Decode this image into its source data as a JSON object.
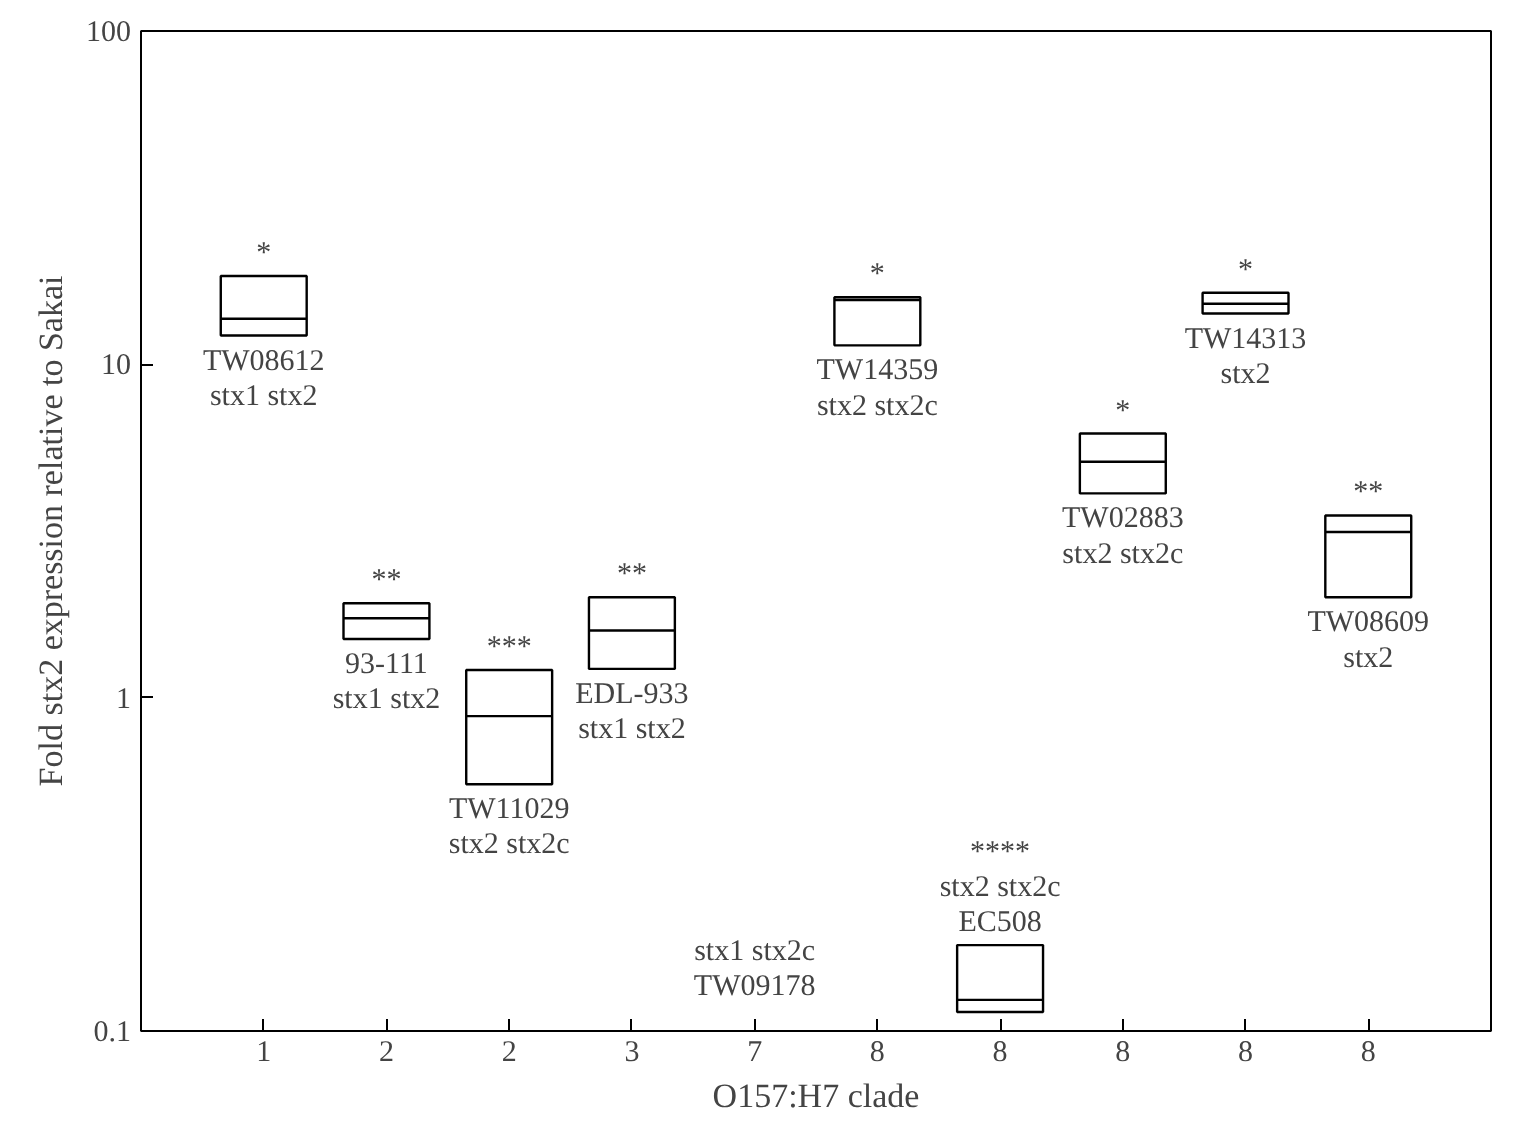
{
  "chart_data": {
    "type": "box",
    "xlabel": "O157:H7 clade",
    "ylabel": "Fold stx2 expression relative to Sakai",
    "categories": [
      "1",
      "2",
      "2",
      "3",
      "7",
      "8",
      "8",
      "8",
      "8",
      "8"
    ],
    "boxes": [
      {
        "low": 12.2,
        "q1": 12.2,
        "median": 13.7,
        "q3": 18.4,
        "high": 18.4
      },
      {
        "low": 1.5,
        "q1": 1.5,
        "median": 1.73,
        "q3": 1.92,
        "high": 1.92
      },
      {
        "low": 0.55,
        "q1": 0.55,
        "median": 0.88,
        "q3": 1.21,
        "high": 1.21
      },
      {
        "low": 1.22,
        "q1": 1.22,
        "median": 1.59,
        "q3": 2.0,
        "high": 2.0
      },
      null,
      {
        "low": 11.4,
        "q1": 11.4,
        "median": 15.6,
        "q3": 15.9,
        "high": 15.9
      },
      {
        "low": 0.114,
        "q1": 0.114,
        "median": 0.124,
        "q3": 0.181,
        "high": 0.181
      },
      {
        "low": 4.1,
        "q1": 4.1,
        "median": 5.1,
        "q3": 6.2,
        "high": 6.2
      },
      {
        "low": 14.2,
        "q1": 14.2,
        "median": 15.2,
        "q3": 16.4,
        "high": 16.4
      },
      {
        "low": 2.0,
        "q1": 2.0,
        "median": 3.14,
        "q3": 3.52,
        "high": 3.52
      }
    ],
    "log": "y",
    "ylim": [
      0.1,
      100
    ],
    "yticks": [
      0.1,
      1,
      10,
      100
    ],
    "grid": false,
    "annotations": [
      "*",
      "TW08612\nstx1 stx2",
      "**",
      "93-111\nstx1 stx2",
      "***",
      "TW11029\nstx2 stx2c",
      "**",
      "EDL-933\nstx1 stx2",
      "stx1 stx2c\nTW09178",
      "*",
      "TW14359\nstx2 stx2c",
      "****\nstx2 stx2c\nEC508",
      "*",
      "TW02883\nstx2 stx2c",
      "*",
      "TW14313\nstx2",
      "**",
      "TW08609\nstx2"
    ]
  }
}
